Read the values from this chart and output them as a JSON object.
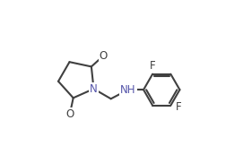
{
  "background_color": "#ffffff",
  "line_color": "#404040",
  "N_color": "#4040a0",
  "O_color": "#404040",
  "F_color": "#404040",
  "line_width": 1.5,
  "font_size": 8.5,
  "fig_width": 2.81,
  "fig_height": 1.63,
  "dpi": 100,
  "xlim": [
    0.0,
    10.0
  ],
  "ylim": [
    1.5,
    9.5
  ]
}
